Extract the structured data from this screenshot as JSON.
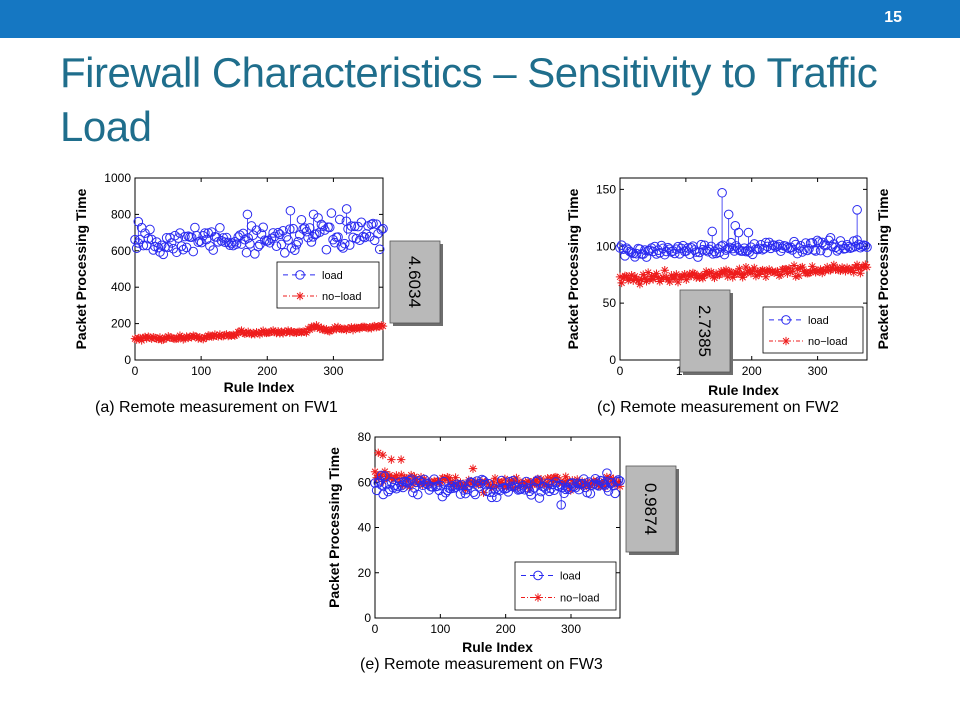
{
  "slide": {
    "number": "15",
    "title": "Firewall Characteristics – Sensitivity to Traffic Load"
  },
  "legend": {
    "load": "load",
    "noload": "no−load"
  },
  "colors": {
    "load": "#2a2af0",
    "noload": "#ee1c1c",
    "bar": "#1577c2",
    "title": "#1f6e8c",
    "badge": "#b9b9b9"
  },
  "chart_data": [
    {
      "type": "scatter",
      "id": "fw1",
      "caption": "(a) Remote measurement on FW1",
      "xlabel": "Rule Index",
      "ylabel": "Packet Processing Time",
      "ylabel_right": "",
      "xlim": [
        0,
        375
      ],
      "ylim": [
        0,
        1000
      ],
      "xticks": [
        0,
        100,
        200,
        300
      ],
      "yticks": [
        0,
        200,
        400,
        600,
        800,
        1000
      ],
      "ratio": "4.6034",
      "series": [
        {
          "name": "load",
          "marker": "circle",
          "level_points": [
            [
              0,
              650
            ],
            [
              100,
              660
            ],
            [
              200,
              670
            ],
            [
              300,
              690
            ],
            [
              375,
              680
            ]
          ],
          "spread": 75,
          "outliers": [
            [
              170,
              800
            ],
            [
              235,
              820
            ],
            [
              320,
              830
            ],
            [
              270,
              800
            ],
            [
              5,
              760
            ]
          ]
        },
        {
          "name": "no-load",
          "marker": "star",
          "level_points": [
            [
              0,
              118
            ],
            [
              100,
              125
            ],
            [
              150,
              138
            ],
            [
              160,
              158
            ],
            [
              175,
              148
            ],
            [
              260,
              158
            ],
            [
              275,
              185
            ],
            [
              290,
              168
            ],
            [
              375,
              180
            ]
          ],
          "spread": 10,
          "outliers": []
        }
      ]
    },
    {
      "type": "scatter",
      "id": "fw2",
      "caption": "(c) Remote measurement on FW2",
      "xlabel": "Rule Index",
      "ylabel": "Packet Processing Time",
      "ylabel_right": "Packet Processing Time",
      "xlim": [
        0,
        375
      ],
      "ylim": [
        0,
        160
      ],
      "xticks": [
        0,
        100,
        200,
        300
      ],
      "yticks": [
        0,
        50,
        100,
        150
      ],
      "ratio": "2.7385",
      "series": [
        {
          "name": "load",
          "marker": "circle",
          "level_points": [
            [
              0,
              95
            ],
            [
              100,
              97
            ],
            [
              200,
              98
            ],
            [
              300,
              100
            ],
            [
              375,
              101
            ]
          ],
          "spread": 5,
          "outliers": [
            [
              155,
              147
            ],
            [
              165,
              128
            ],
            [
              175,
              118
            ],
            [
              180,
              112
            ],
            [
              360,
              132
            ],
            [
              140,
              113
            ],
            [
              195,
              112
            ]
          ]
        },
        {
          "name": "no-load",
          "marker": "star",
          "level_points": [
            [
              0,
              71
            ],
            [
              100,
              74
            ],
            [
              200,
              77
            ],
            [
              300,
              79
            ],
            [
              375,
              80
            ]
          ],
          "spread": 4,
          "outliers": []
        }
      ]
    },
    {
      "type": "scatter",
      "id": "fw3",
      "caption": "(e) Remote measurement on FW3",
      "xlabel": "Rule Index",
      "ylabel": "Packet Processing Time",
      "ylabel_right": "",
      "xlim": [
        0,
        375
      ],
      "ylim": [
        0,
        80
      ],
      "xticks": [
        0,
        100,
        200,
        300
      ],
      "yticks": [
        0,
        20,
        40,
        60,
        80
      ],
      "ratio": "0.9874",
      "series": [
        {
          "name": "load",
          "marker": "circle",
          "level_points": [
            [
              0,
              58
            ],
            [
              100,
              58
            ],
            [
              200,
              57
            ],
            [
              300,
              58
            ],
            [
              375,
              59
            ]
          ],
          "spread": 3.5,
          "outliers": [
            [
              285,
              50
            ],
            [
              10,
              63
            ],
            [
              355,
              64
            ]
          ]
        },
        {
          "name": "no-load",
          "marker": "star",
          "level_points": [
            [
              0,
              63
            ],
            [
              50,
              61
            ],
            [
              100,
              60
            ],
            [
              200,
              59
            ],
            [
              300,
              60
            ],
            [
              375,
              60
            ]
          ],
          "spread": 2.5,
          "outliers": [
            [
              5,
              73
            ],
            [
              12,
              72
            ],
            [
              25,
              70
            ],
            [
              40,
              70
            ],
            [
              150,
              66
            ]
          ]
        }
      ]
    }
  ]
}
